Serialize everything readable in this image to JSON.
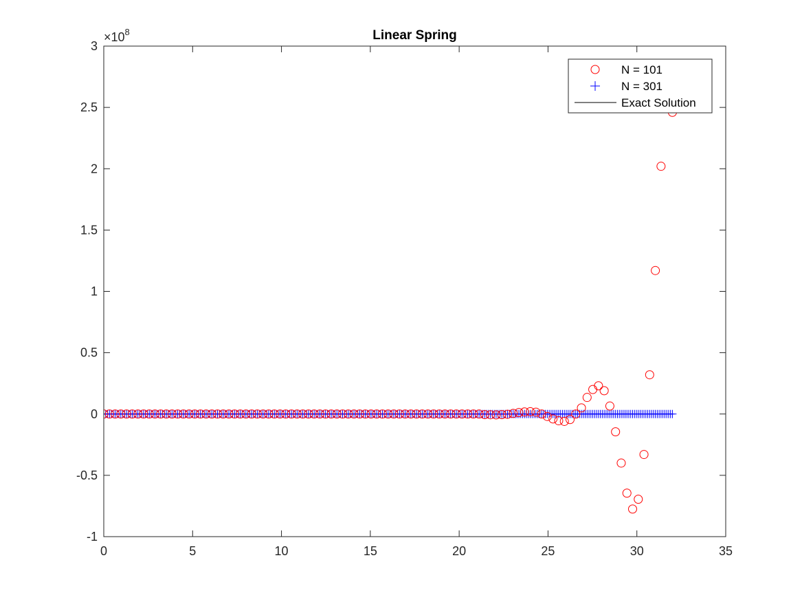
{
  "chart_data": {
    "type": "scatter",
    "title": "Linear Spring",
    "xlabel": "",
    "ylabel": "",
    "xlim": [
      0,
      35
    ],
    "ylim": [
      -1,
      3
    ],
    "y_exponent_label": "×10",
    "y_exponent": "8",
    "xticks": [
      0,
      5,
      10,
      15,
      20,
      25,
      30,
      35
    ],
    "yticks": [
      -1,
      -0.5,
      0,
      0.5,
      1,
      1.5,
      2,
      2.5,
      3
    ],
    "ytick_labels": [
      "-1",
      "-0.5",
      "0",
      "0.5",
      "1",
      "1.5",
      "2",
      "2.5",
      "3"
    ],
    "grid": false,
    "legend_position": "top-right",
    "series": [
      {
        "name": "N = 101",
        "marker": "circle",
        "color": "#ff0000",
        "x_range": [
          0,
          32,
          101
        ],
        "nonzero_points": [
          [
            21.44,
            -0.005
          ],
          [
            21.76,
            -0.006
          ],
          [
            22.08,
            -0.007
          ],
          [
            22.4,
            -0.005
          ],
          [
            22.72,
            -0.002
          ],
          [
            23.04,
            0.005
          ],
          [
            23.36,
            0.012
          ],
          [
            23.68,
            0.017
          ],
          [
            24.0,
            0.019
          ],
          [
            24.32,
            0.015
          ],
          [
            24.64,
            0.0
          ],
          [
            24.96,
            -0.02
          ],
          [
            25.28,
            -0.04
          ],
          [
            25.6,
            -0.055
          ],
          [
            25.92,
            -0.06
          ],
          [
            26.24,
            -0.045
          ],
          [
            26.56,
            0.0
          ],
          [
            26.88,
            0.05
          ],
          [
            27.2,
            0.135
          ],
          [
            27.52,
            0.2
          ],
          [
            27.84,
            0.23
          ],
          [
            28.16,
            0.19
          ],
          [
            28.48,
            0.065
          ],
          [
            28.8,
            -0.145
          ],
          [
            29.12,
            -0.4
          ],
          [
            29.44,
            -0.645
          ],
          [
            29.76,
            -0.775
          ],
          [
            30.08,
            -0.695
          ],
          [
            30.4,
            -0.33
          ],
          [
            30.72,
            0.32
          ],
          [
            31.04,
            1.17
          ],
          [
            31.36,
            2.02
          ],
          [
            31.68,
            2.6
          ],
          [
            32.0,
            2.46
          ]
        ]
      },
      {
        "name": "N = 301",
        "marker": "plus",
        "color": "#0000ff",
        "x_range": [
          0,
          32,
          301
        ],
        "value": 0
      },
      {
        "name": "Exact Solution",
        "marker": "line",
        "color": "#000000",
        "x_range": [
          0,
          32
        ],
        "value": 0
      }
    ]
  }
}
